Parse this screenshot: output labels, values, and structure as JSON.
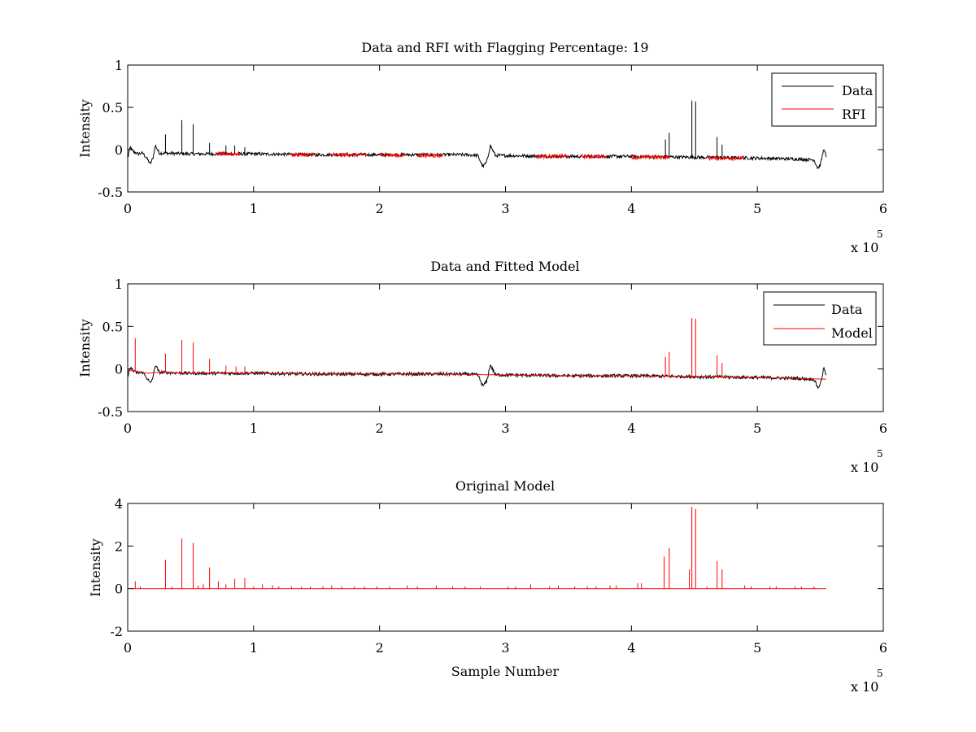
{
  "colors": {
    "data": "#000000",
    "rfi": "#ff0000",
    "axes": "#000000"
  },
  "chart_data": [
    {
      "type": "line",
      "title": "Data and RFI with Flagging Percentage: 19",
      "xlabel": "",
      "ylabel": "Intensity",
      "xlim": [
        0,
        6
      ],
      "ylim": [
        -0.5,
        1
      ],
      "xticks": [
        "0",
        "1",
        "2",
        "3",
        "4",
        "5",
        "6"
      ],
      "yticks": [
        "-0.5",
        "0",
        "0.5",
        "1"
      ],
      "exponent_base": "x 10",
      "exponent_power": "5",
      "legend_position": "top-right",
      "series": [
        {
          "name": "Data",
          "color": "#000000",
          "x": [
            0.0,
            0.02,
            0.04,
            0.08,
            0.12,
            0.15,
            0.18,
            0.2,
            0.22,
            0.25,
            0.5,
            1.0,
            1.5,
            2.0,
            2.5,
            2.7,
            2.78,
            2.82,
            2.85,
            2.88,
            2.92,
            3.0,
            3.5,
            4.0,
            4.5,
            5.0,
            5.3,
            5.45,
            5.48,
            5.5,
            5.53,
            5.55
          ],
          "y": [
            -0.1,
            0.03,
            -0.02,
            -0.05,
            -0.04,
            -0.1,
            -0.17,
            -0.1,
            0.05,
            -0.04,
            -0.05,
            -0.05,
            -0.06,
            -0.06,
            -0.06,
            -0.06,
            -0.07,
            -0.2,
            -0.15,
            0.05,
            -0.07,
            -0.07,
            -0.08,
            -0.08,
            -0.09,
            -0.1,
            -0.11,
            -0.12,
            -0.22,
            -0.18,
            0.02,
            -0.12
          ],
          "spikes": [
            [
              0.3,
              0.18
            ],
            [
              0.43,
              0.35
            ],
            [
              0.52,
              0.3
            ],
            [
              0.65,
              0.08
            ],
            [
              0.78,
              0.05
            ],
            [
              0.85,
              0.05
            ],
            [
              0.93,
              0.03
            ],
            [
              4.27,
              0.12
            ],
            [
              4.3,
              0.2
            ],
            [
              4.48,
              0.58
            ],
            [
              4.51,
              0.57
            ],
            [
              4.68,
              0.15
            ],
            [
              4.72,
              0.06
            ]
          ]
        },
        {
          "name": "RFI",
          "color": "#ff0000",
          "x": [
            0.7,
            0.9,
            1.3,
            1.5,
            1.6,
            1.9,
            2.0,
            2.2,
            2.3,
            2.5,
            3.25,
            3.5,
            3.6,
            3.8,
            4.0,
            4.3,
            4.6,
            4.9
          ],
          "y": [
            -0.05,
            -0.05,
            -0.06,
            -0.06,
            -0.06,
            -0.06,
            -0.06,
            -0.07,
            -0.07,
            -0.07,
            -0.08,
            -0.08,
            -0.08,
            -0.08,
            -0.09,
            -0.09,
            -0.1,
            -0.1
          ],
          "segments": [
            [
              0.7,
              0.9
            ],
            [
              1.3,
              1.5
            ],
            [
              1.6,
              1.9
            ],
            [
              2.0,
              2.2
            ],
            [
              2.3,
              2.5
            ],
            [
              3.25,
              3.5
            ],
            [
              3.6,
              3.8
            ],
            [
              4.0,
              4.3
            ],
            [
              4.6,
              4.9
            ]
          ]
        }
      ]
    },
    {
      "type": "line",
      "title": "Data and Fitted Model",
      "xlabel": "",
      "ylabel": "Intensity",
      "xlim": [
        0,
        6
      ],
      "ylim": [
        -0.5,
        1
      ],
      "xticks": [
        "0",
        "1",
        "2",
        "3",
        "4",
        "5",
        "6"
      ],
      "yticks": [
        "-0.5",
        "0",
        "0.5",
        "1"
      ],
      "exponent_base": "x 10",
      "exponent_power": "5",
      "legend_position": "top-right",
      "series": [
        {
          "name": "Data",
          "color": "#000000",
          "x": [
            0.0,
            0.02,
            0.04,
            0.08,
            0.12,
            0.15,
            0.18,
            0.2,
            0.22,
            0.25,
            0.5,
            1.0,
            1.5,
            2.0,
            2.5,
            2.7,
            2.78,
            2.82,
            2.85,
            2.88,
            2.92,
            3.0,
            3.5,
            4.0,
            4.5,
            5.0,
            5.3,
            5.45,
            5.48,
            5.5,
            5.53,
            5.55
          ],
          "y": [
            -0.1,
            0.03,
            -0.02,
            -0.05,
            -0.04,
            -0.1,
            -0.17,
            -0.1,
            0.05,
            -0.04,
            -0.05,
            -0.05,
            -0.06,
            -0.06,
            -0.06,
            -0.06,
            -0.07,
            -0.2,
            -0.15,
            0.05,
            -0.07,
            -0.07,
            -0.08,
            -0.08,
            -0.09,
            -0.1,
            -0.11,
            -0.12,
            -0.22,
            -0.18,
            0.02,
            -0.12
          ]
        },
        {
          "name": "Model",
          "color": "#ff0000",
          "x": [
            0.0,
            0.05,
            0.15,
            0.25,
            0.5,
            1.0,
            1.5,
            2.0,
            2.5,
            3.0,
            3.5,
            4.0,
            4.5,
            5.0,
            5.55
          ],
          "y": [
            -0.02,
            -0.02,
            -0.05,
            -0.04,
            -0.05,
            -0.05,
            -0.06,
            -0.06,
            -0.06,
            -0.07,
            -0.08,
            -0.08,
            -0.09,
            -0.1,
            -0.12
          ],
          "spikes": [
            [
              0.06,
              0.36
            ],
            [
              0.3,
              0.18
            ],
            [
              0.43,
              0.34
            ],
            [
              0.52,
              0.31
            ],
            [
              0.65,
              0.12
            ],
            [
              0.78,
              0.04
            ],
            [
              0.86,
              0.03
            ],
            [
              0.93,
              0.03
            ],
            [
              4.27,
              0.14
            ],
            [
              4.3,
              0.2
            ],
            [
              4.48,
              0.6
            ],
            [
              4.51,
              0.59
            ],
            [
              4.68,
              0.16
            ],
            [
              4.72,
              0.07
            ]
          ]
        }
      ]
    },
    {
      "type": "line",
      "title": "Original Model",
      "xlabel": "Sample Number",
      "ylabel": "Intensity",
      "xlim": [
        0,
        6
      ],
      "ylim": [
        -2,
        4
      ],
      "xticks": [
        "0",
        "1",
        "2",
        "3",
        "4",
        "5",
        "6"
      ],
      "yticks": [
        "-2",
        "0",
        "2",
        "4"
      ],
      "exponent_base": "x 10",
      "exponent_power": "5",
      "series": [
        {
          "name": "Original Model",
          "color": "#ff0000",
          "x": [
            0.03,
            5.55
          ],
          "y": [
            0,
            0
          ],
          "spikes": [
            [
              0.06,
              0.35
            ],
            [
              0.1,
              0.1
            ],
            [
              0.3,
              1.35
            ],
            [
              0.35,
              0.1
            ],
            [
              0.43,
              2.35
            ],
            [
              0.52,
              2.15
            ],
            [
              0.56,
              0.15
            ],
            [
              0.6,
              0.2
            ],
            [
              0.65,
              1.0
            ],
            [
              0.72,
              0.35
            ],
            [
              0.78,
              0.2
            ],
            [
              0.85,
              0.45
            ],
            [
              0.93,
              0.5
            ],
            [
              1.0,
              0.1
            ],
            [
              1.07,
              0.2
            ],
            [
              1.15,
              0.15
            ],
            [
              1.2,
              0.1
            ],
            [
              1.3,
              0.1
            ],
            [
              1.38,
              0.1
            ],
            [
              1.45,
              0.1
            ],
            [
              1.55,
              0.1
            ],
            [
              1.62,
              0.15
            ],
            [
              1.7,
              0.1
            ],
            [
              1.8,
              0.1
            ],
            [
              1.88,
              0.1
            ],
            [
              1.98,
              0.1
            ],
            [
              2.08,
              0.1
            ],
            [
              2.22,
              0.15
            ],
            [
              2.3,
              0.1
            ],
            [
              2.45,
              0.15
            ],
            [
              2.58,
              0.1
            ],
            [
              2.68,
              0.1
            ],
            [
              2.8,
              0.1
            ],
            [
              3.02,
              0.1
            ],
            [
              3.08,
              0.1
            ],
            [
              3.2,
              0.2
            ],
            [
              3.35,
              0.1
            ],
            [
              3.42,
              0.15
            ],
            [
              3.55,
              0.1
            ],
            [
              3.65,
              0.1
            ],
            [
              3.72,
              0.1
            ],
            [
              3.83,
              0.15
            ],
            [
              3.88,
              0.15
            ],
            [
              4.05,
              0.25
            ],
            [
              4.08,
              0.25
            ],
            [
              4.26,
              1.5
            ],
            [
              4.3,
              1.9
            ],
            [
              4.46,
              0.9
            ],
            [
              4.48,
              3.85
            ],
            [
              4.51,
              3.75
            ],
            [
              4.6,
              0.1
            ],
            [
              4.68,
              1.3
            ],
            [
              4.72,
              0.9
            ],
            [
              4.9,
              0.15
            ],
            [
              4.95,
              0.1
            ],
            [
              5.1,
              0.1
            ],
            [
              5.15,
              0.1
            ],
            [
              5.3,
              0.1
            ],
            [
              5.35,
              0.1
            ],
            [
              5.45,
              0.1
            ]
          ]
        }
      ]
    }
  ]
}
